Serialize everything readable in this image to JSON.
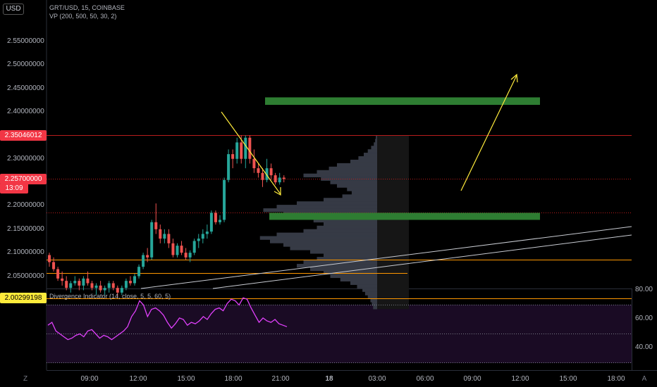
{
  "header": {
    "symbol_line": "GRT/USD, 15, COINBASE",
    "indicator_line": "VP (200, 500, 50, 30, 2)",
    "currency_button": "USD"
  },
  "price_axis": {
    "ticks": [
      "2.55000000",
      "2.50000000",
      "2.45000000",
      "2.40000000",
      "2.30000000",
      "2.20000000",
      "2.15000000",
      "2.10000000",
      "2.05000000"
    ],
    "tick_values": [
      2.55,
      2.5,
      2.45,
      2.4,
      2.3,
      2.2,
      2.15,
      2.1,
      2.05
    ],
    "marked": [
      {
        "text": "2.35046012",
        "value": 2.35046012,
        "style": "red"
      },
      {
        "text": "2.25700000",
        "value": 2.257,
        "style": "red2"
      },
      {
        "text": "13:09",
        "value": 2.238,
        "style": "red2"
      },
      {
        "text": "2.00299198",
        "value": 2.00299198,
        "style": "yellow"
      }
    ]
  },
  "time_axis": {
    "labels": [
      "09:00",
      "12:00",
      "15:00",
      "18:00",
      "21:00",
      "18",
      "03:00",
      "06:00",
      "09:00",
      "12:00",
      "15:00",
      "18:00"
    ]
  },
  "oscillator": {
    "title": "Divergence Indicator (14, close, 5, 5, 60, 5)",
    "ticks": [
      "80.00",
      "60.00",
      "40.00"
    ],
    "tick_values": [
      80,
      60,
      40
    ],
    "upper_band": 70,
    "lower_band": 30,
    "mid_band": 50,
    "values": [
      56,
      58,
      52,
      50,
      48,
      46,
      47,
      49,
      50,
      48,
      52,
      53,
      50,
      47,
      49,
      48,
      46,
      48,
      50,
      52,
      55,
      62,
      66,
      73,
      70,
      62,
      67,
      68,
      66,
      63,
      58,
      54,
      57,
      61,
      60,
      56,
      58,
      57,
      59,
      62,
      60,
      64,
      67,
      68,
      66,
      71,
      74,
      73,
      70,
      75,
      74,
      68,
      63,
      58,
      61,
      59,
      58,
      60,
      57,
      56,
      55
    ]
  },
  "chart_data": {
    "type": "candlestick",
    "title": "GRT/USD, 15, COINBASE",
    "ylim": [
      1.98,
      2.56
    ],
    "colors": {
      "up": "#26a69a",
      "down": "#ef5350",
      "zone": "#2e7d32",
      "level_orange": "#ff9800",
      "level_red": "#b71c1c",
      "trend": "#d1d4dc",
      "arrow": "#ffeb3b",
      "volume_profile": "#363a45"
    },
    "candles": [
      [
        2.095,
        2.1,
        2.07,
        2.08
      ],
      [
        2.08,
        2.09,
        2.06,
        2.065
      ],
      [
        2.065,
        2.07,
        2.04,
        2.045
      ],
      [
        2.045,
        2.06,
        2.03,
        2.04
      ],
      [
        2.04,
        2.05,
        2.02,
        2.025
      ],
      [
        2.025,
        2.04,
        2.015,
        2.035
      ],
      [
        2.035,
        2.05,
        2.03,
        2.04
      ],
      [
        2.04,
        2.045,
        2.02,
        2.03
      ],
      [
        2.03,
        2.05,
        2.02,
        2.045
      ],
      [
        2.045,
        2.06,
        2.03,
        2.035
      ],
      [
        2.035,
        2.04,
        2.02,
        2.025
      ],
      [
        2.025,
        2.035,
        2.01,
        2.03
      ],
      [
        2.03,
        2.04,
        2.015,
        2.02
      ],
      [
        2.02,
        2.03,
        2.01,
        2.025
      ],
      [
        2.025,
        2.04,
        2.015,
        2.035
      ],
      [
        2.035,
        2.04,
        2.02,
        2.025
      ],
      [
        2.025,
        2.03,
        2.005,
        2.015
      ],
      [
        2.015,
        2.03,
        2.01,
        2.025
      ],
      [
        2.025,
        2.045,
        2.02,
        2.04
      ],
      [
        2.04,
        2.05,
        2.03,
        2.035
      ],
      [
        2.035,
        2.055,
        2.03,
        2.05
      ],
      [
        2.05,
        2.075,
        2.045,
        2.07
      ],
      [
        2.07,
        2.1,
        2.065,
        2.095
      ],
      [
        2.095,
        2.11,
        2.08,
        2.09
      ],
      [
        2.09,
        2.17,
        2.085,
        2.165
      ],
      [
        2.165,
        2.205,
        2.14,
        2.15
      ],
      [
        2.15,
        2.16,
        2.12,
        2.13
      ],
      [
        2.13,
        2.15,
        2.12,
        2.14
      ],
      [
        2.14,
        2.15,
        2.11,
        2.12
      ],
      [
        2.12,
        2.13,
        2.09,
        2.095
      ],
      [
        2.095,
        2.12,
        2.09,
        2.115
      ],
      [
        2.115,
        2.125,
        2.095,
        2.1
      ],
      [
        2.1,
        2.11,
        2.085,
        2.09
      ],
      [
        2.09,
        2.105,
        2.08,
        2.1
      ],
      [
        2.1,
        2.13,
        2.095,
        2.125
      ],
      [
        2.125,
        2.14,
        2.11,
        2.13
      ],
      [
        2.13,
        2.15,
        2.12,
        2.14
      ],
      [
        2.14,
        2.16,
        2.13,
        2.145
      ],
      [
        2.145,
        2.19,
        2.14,
        2.185
      ],
      [
        2.185,
        2.19,
        2.16,
        2.165
      ],
      [
        2.165,
        2.18,
        2.16,
        2.17
      ],
      [
        2.17,
        2.26,
        2.165,
        2.255
      ],
      [
        2.255,
        2.32,
        2.25,
        2.31
      ],
      [
        2.31,
        2.32,
        2.28,
        2.3
      ],
      [
        2.3,
        2.345,
        2.29,
        2.335
      ],
      [
        2.335,
        2.35,
        2.29,
        2.3
      ],
      [
        2.3,
        2.35,
        2.28,
        2.345
      ],
      [
        2.345,
        2.35,
        2.29,
        2.3
      ],
      [
        2.3,
        2.32,
        2.27,
        2.28
      ],
      [
        2.28,
        2.29,
        2.26,
        2.27
      ],
      [
        2.27,
        2.28,
        2.24,
        2.255
      ],
      [
        2.255,
        2.3,
        2.25,
        2.28
      ],
      [
        2.28,
        2.29,
        2.255,
        2.265
      ],
      [
        2.265,
        2.27,
        2.245,
        2.25
      ],
      [
        2.25,
        2.27,
        2.245,
        2.26
      ],
      [
        2.26,
        2.265,
        2.25,
        2.257
      ]
    ],
    "zones": [
      {
        "name": "upper-target-zone",
        "top": 2.431,
        "bottom": 2.415
      },
      {
        "name": "lower-support-zone",
        "top": 2.185,
        "bottom": 2.17
      }
    ],
    "levels": [
      {
        "name": "resistance-line",
        "value": 2.35046012,
        "style": "level_red"
      },
      {
        "name": "current-price-line",
        "value": 2.257,
        "style": "level_red"
      },
      {
        "name": "mid-dotted-line",
        "value": 2.185,
        "style": "level_red"
      },
      {
        "name": "orange-level-1",
        "value": 2.085,
        "style": "level_orange"
      },
      {
        "name": "orange-level-2",
        "value": 2.057,
        "style": "level_orange"
      },
      {
        "name": "support-line",
        "value": 2.00299198,
        "style": "level_orange"
      }
    ]
  }
}
